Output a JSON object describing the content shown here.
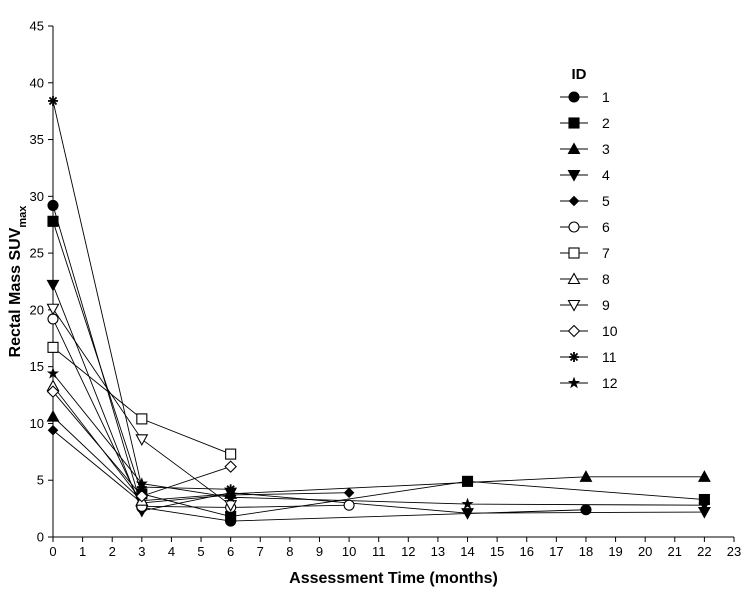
{
  "chart_data": {
    "type": "line",
    "xlabel": "Assessment Time (months)",
    "ylabel_main": "Rectal Mass SUV",
    "ylabel_sub": "max",
    "xlim": [
      0,
      23
    ],
    "ylim": [
      0,
      45
    ],
    "xticks": [
      0,
      1,
      2,
      3,
      4,
      5,
      6,
      7,
      8,
      9,
      10,
      11,
      12,
      13,
      14,
      15,
      16,
      17,
      18,
      19,
      20,
      21,
      22,
      23
    ],
    "yticks": [
      0,
      5,
      10,
      15,
      20,
      25,
      30,
      35,
      40,
      45
    ],
    "grid": false,
    "legend": {
      "title": "ID",
      "position": "top-right"
    },
    "series": [
      {
        "name": "1",
        "marker": "circle-filled",
        "x": [
          0,
          3,
          6,
          18
        ],
        "y": [
          29.2,
          2.6,
          1.4,
          2.4
        ]
      },
      {
        "name": "2",
        "marker": "square-filled",
        "x": [
          0,
          3,
          6,
          14,
          22
        ],
        "y": [
          27.8,
          3.8,
          1.8,
          4.9,
          3.3
        ]
      },
      {
        "name": "3",
        "marker": "triangle-up-filled",
        "x": [
          0,
          3,
          6,
          18,
          22
        ],
        "y": [
          10.6,
          3.2,
          3.8,
          5.3,
          5.3
        ]
      },
      {
        "name": "4",
        "marker": "triangle-down-filled",
        "x": [
          0,
          3,
          6,
          14,
          22
        ],
        "y": [
          22.2,
          2.3,
          3.9,
          2.1,
          2.2
        ]
      },
      {
        "name": "5",
        "marker": "diamond-filled",
        "x": [
          0,
          3,
          6,
          10
        ],
        "y": [
          9.4,
          3.0,
          3.7,
          3.9
        ]
      },
      {
        "name": "6",
        "marker": "circle-open",
        "x": [
          0,
          3,
          6,
          10
        ],
        "y": [
          19.2,
          2.7,
          2.6,
          2.8
        ]
      },
      {
        "name": "7",
        "marker": "square-open",
        "x": [
          0,
          3,
          6
        ],
        "y": [
          16.7,
          10.4,
          7.3
        ]
      },
      {
        "name": "8",
        "marker": "triangle-up-open",
        "x": [
          0,
          3
        ],
        "y": [
          13.3,
          3.2
        ]
      },
      {
        "name": "9",
        "marker": "triangle-down-open",
        "x": [
          0,
          3,
          6
        ],
        "y": [
          20.1,
          8.6,
          2.8
        ]
      },
      {
        "name": "10",
        "marker": "diamond-open",
        "x": [
          0,
          3,
          6
        ],
        "y": [
          12.8,
          3.6,
          6.2
        ]
      },
      {
        "name": "11",
        "marker": "asterisk",
        "x": [
          0,
          3,
          6
        ],
        "y": [
          38.4,
          4.4,
          4.2
        ]
      },
      {
        "name": "12",
        "marker": "star",
        "x": [
          0,
          3,
          6,
          14,
          22
        ],
        "y": [
          14.4,
          4.7,
          3.5,
          2.9,
          2.8
        ]
      }
    ]
  }
}
